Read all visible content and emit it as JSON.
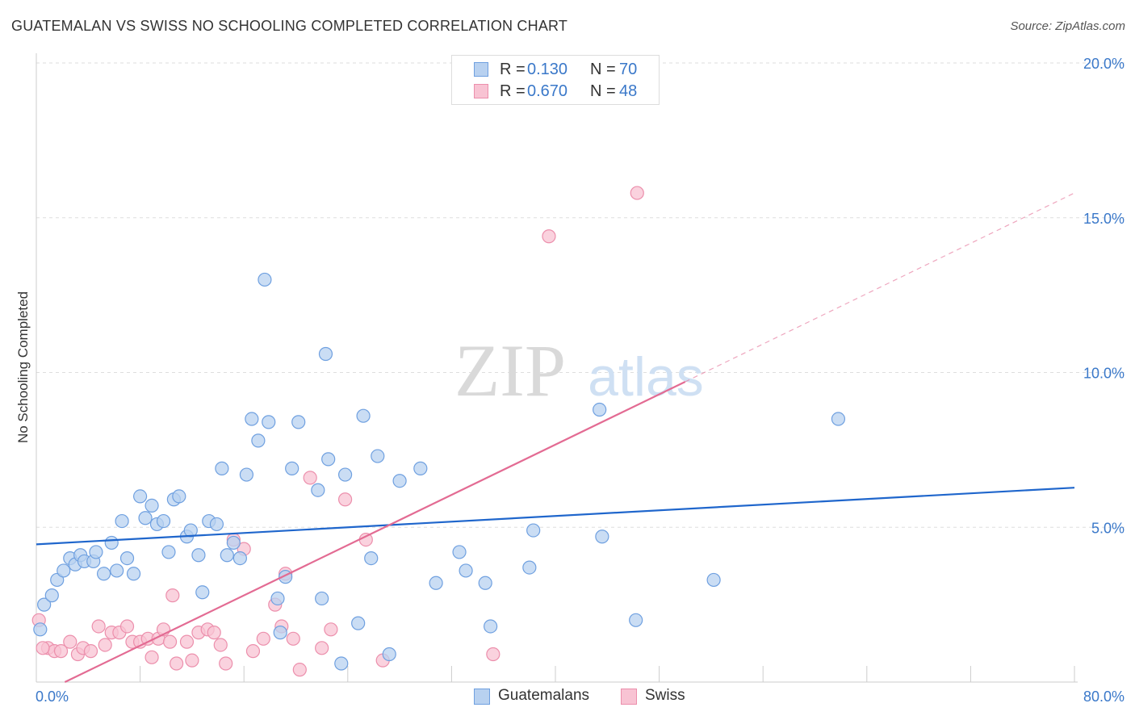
{
  "header": {
    "title": "GUATEMALAN VS SWISS NO SCHOOLING COMPLETED CORRELATION CHART",
    "source": "Source: ZipAtlas.com"
  },
  "watermark": {
    "zip": "ZIP",
    "atlas": "atlas"
  },
  "legend_top": {
    "rows": [
      {
        "r_label": "R =",
        "r_value": "0.130",
        "n_label": "N =",
        "n_value": "70",
        "color": "#6fa0e0"
      },
      {
        "r_label": "R =",
        "r_value": "0.670",
        "n_label": "N =",
        "n_value": "48",
        "color": "#f28aaa"
      }
    ]
  },
  "legend_bottom": {
    "items": [
      {
        "label": "Guatemalans",
        "color": "#6fa0e0"
      },
      {
        "label": "Swiss",
        "color": "#f28aaa"
      }
    ]
  },
  "colors": {
    "blue_point_fill": "#b8d1f0",
    "blue_point_stroke": "#6fa0e0",
    "blue_line": "#1f66cc",
    "pink_point_fill": "#f8c3d3",
    "pink_point_stroke": "#ec8fac",
    "pink_line": "#e36b93",
    "tick_label": "#3a78c9",
    "grid": "#dedede"
  },
  "chart_data": {
    "type": "scatter",
    "title": "GUATEMALAN VS SWISS NO SCHOOLING COMPLETED CORRELATION CHART",
    "xlabel": "",
    "ylabel": "No Schooling Completed",
    "xlim": [
      0,
      80
    ],
    "ylim": [
      0,
      20
    ],
    "x_ticks": [
      0,
      80
    ],
    "x_tick_labels": [
      "0.0%",
      "80.0%"
    ],
    "y_ticks": [
      5,
      10,
      15,
      20
    ],
    "y_tick_labels": [
      "5.0%",
      "10.0%",
      "15.0%",
      "20.0%"
    ],
    "grid": true,
    "legend_position": "top-center",
    "series": [
      {
        "name": "Guatemalans",
        "r": 0.13,
        "n": 70,
        "trend": {
          "x": [
            0,
            80
          ],
          "y": [
            4.45,
            6.28
          ]
        },
        "points": [
          [
            0.3,
            1.7
          ],
          [
            0.6,
            2.5
          ],
          [
            1.2,
            2.8
          ],
          [
            1.6,
            3.3
          ],
          [
            2.1,
            3.6
          ],
          [
            2.6,
            4.0
          ],
          [
            3.0,
            3.8
          ],
          [
            3.4,
            4.1
          ],
          [
            3.7,
            3.9
          ],
          [
            4.4,
            3.9
          ],
          [
            4.6,
            4.2
          ],
          [
            5.2,
            3.5
          ],
          [
            5.8,
            4.5
          ],
          [
            6.2,
            3.6
          ],
          [
            6.6,
            5.2
          ],
          [
            7.0,
            4.0
          ],
          [
            7.5,
            3.5
          ],
          [
            8.0,
            6.0
          ],
          [
            8.4,
            5.3
          ],
          [
            8.9,
            5.7
          ],
          [
            9.3,
            5.1
          ],
          [
            9.8,
            5.2
          ],
          [
            10.2,
            4.2
          ],
          [
            10.6,
            5.9
          ],
          [
            11.0,
            6.0
          ],
          [
            11.6,
            4.7
          ],
          [
            11.9,
            4.9
          ],
          [
            12.5,
            4.1
          ],
          [
            12.8,
            2.9
          ],
          [
            13.3,
            5.2
          ],
          [
            13.9,
            5.1
          ],
          [
            14.3,
            6.9
          ],
          [
            14.7,
            4.1
          ],
          [
            15.2,
            4.5
          ],
          [
            15.7,
            4.0
          ],
          [
            16.2,
            6.7
          ],
          [
            16.6,
            8.5
          ],
          [
            17.1,
            7.8
          ],
          [
            17.6,
            13.0
          ],
          [
            17.9,
            8.4
          ],
          [
            18.6,
            2.7
          ],
          [
            18.8,
            1.6
          ],
          [
            19.2,
            3.4
          ],
          [
            19.7,
            6.9
          ],
          [
            20.2,
            8.4
          ],
          [
            21.7,
            6.2
          ],
          [
            22.0,
            2.7
          ],
          [
            22.3,
            10.6
          ],
          [
            22.5,
            7.2
          ],
          [
            23.5,
            0.6
          ],
          [
            23.8,
            6.7
          ],
          [
            24.8,
            1.9
          ],
          [
            25.2,
            8.6
          ],
          [
            25.8,
            4.0
          ],
          [
            26.3,
            7.3
          ],
          [
            27.2,
            0.9
          ],
          [
            28.0,
            6.5
          ],
          [
            29.6,
            6.9
          ],
          [
            30.8,
            3.2
          ],
          [
            32.6,
            4.2
          ],
          [
            33.1,
            3.6
          ],
          [
            34.6,
            3.2
          ],
          [
            35.0,
            1.8
          ],
          [
            38.0,
            3.7
          ],
          [
            38.3,
            4.9
          ],
          [
            43.4,
            8.8
          ],
          [
            43.6,
            4.7
          ],
          [
            46.2,
            2.0
          ],
          [
            52.2,
            3.3
          ],
          [
            61.8,
            8.5
          ]
        ]
      },
      {
        "name": "Swiss",
        "r": 0.67,
        "n": 48,
        "trend": {
          "x": [
            2.2,
            50
          ],
          "y": [
            0.0,
            9.7
          ],
          "dashed_to": {
            "x": 80,
            "y": 15.8
          }
        },
        "points": [
          [
            0.2,
            2.0
          ],
          [
            0.9,
            1.1
          ],
          [
            1.4,
            1.0
          ],
          [
            1.9,
            1.0
          ],
          [
            2.6,
            1.3
          ],
          [
            3.2,
            0.9
          ],
          [
            3.6,
            1.1
          ],
          [
            4.2,
            1.0
          ],
          [
            4.8,
            1.8
          ],
          [
            5.3,
            1.2
          ],
          [
            5.8,
            1.6
          ],
          [
            6.4,
            1.6
          ],
          [
            7.0,
            1.8
          ],
          [
            7.4,
            1.3
          ],
          [
            8.0,
            1.3
          ],
          [
            8.6,
            1.4
          ],
          [
            8.9,
            0.8
          ],
          [
            9.4,
            1.4
          ],
          [
            9.8,
            1.7
          ],
          [
            10.3,
            1.3
          ],
          [
            10.5,
            2.8
          ],
          [
            10.8,
            0.6
          ],
          [
            11.6,
            1.3
          ],
          [
            12.0,
            0.7
          ],
          [
            12.5,
            1.6
          ],
          [
            13.2,
            1.7
          ],
          [
            13.7,
            1.6
          ],
          [
            14.2,
            1.2
          ],
          [
            14.6,
            0.6
          ],
          [
            15.2,
            4.6
          ],
          [
            16.0,
            4.3
          ],
          [
            16.7,
            1.0
          ],
          [
            17.5,
            1.4
          ],
          [
            18.4,
            2.5
          ],
          [
            18.9,
            1.8
          ],
          [
            19.2,
            3.5
          ],
          [
            19.8,
            1.4
          ],
          [
            20.3,
            0.4
          ],
          [
            21.1,
            6.6
          ],
          [
            22.0,
            1.1
          ],
          [
            22.7,
            1.7
          ],
          [
            23.8,
            5.9
          ],
          [
            25.4,
            4.6
          ],
          [
            26.7,
            0.7
          ],
          [
            35.2,
            0.9
          ],
          [
            39.5,
            14.4
          ],
          [
            46.3,
            15.8
          ],
          [
            0.5,
            1.1
          ]
        ]
      }
    ]
  }
}
